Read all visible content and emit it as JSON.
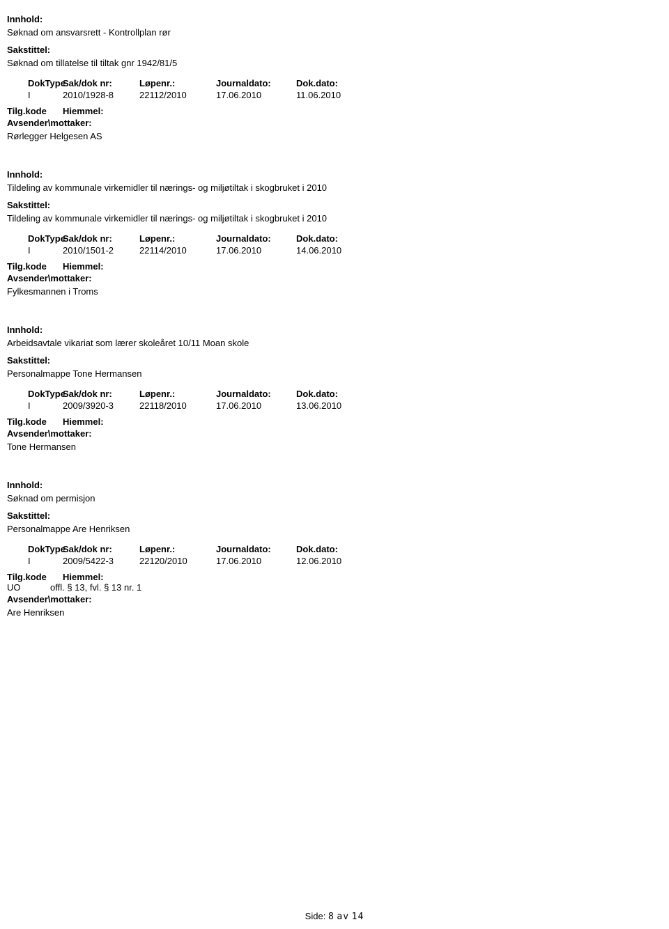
{
  "labels": {
    "innhold": "Innhold:",
    "sakstittel": "Sakstittel:",
    "doktype": "DokType",
    "saknr": "Sak/dok nr:",
    "lopenr": "Løpenr.:",
    "journaldato": "Journaldato:",
    "dokdato": "Dok.dato:",
    "tilgkode": "Tilg.kode",
    "hiemmel": "Hiemmel:",
    "avsender": "Avsender\\mottaker:"
  },
  "entries": [
    {
      "innhold": "Søknad om ansvarsrett - Kontrollplan rør",
      "sakstittel": "Søknad om tillatelse til tiltak gnr 1942/81/5",
      "doktype": "I",
      "saknr": "2010/1928-8",
      "lopenr": "22112/2010",
      "journaldato": "17.06.2010",
      "dokdato": "11.06.2010",
      "tilgkode": "",
      "hiemmel": "",
      "avsender": "Rørlegger Helgesen AS"
    },
    {
      "innhold": "Tildeling av kommunale virkemidler til nærings- og miljøtiltak i skogbruket i 2010",
      "sakstittel": "Tildeling av kommunale virkemidler til nærings- og miljøtiltak i skogbruket i 2010",
      "doktype": "I",
      "saknr": "2010/1501-2",
      "lopenr": "22114/2010",
      "journaldato": "17.06.2010",
      "dokdato": "14.06.2010",
      "tilgkode": "",
      "hiemmel": "",
      "avsender": "Fylkesmannen i Troms"
    },
    {
      "innhold": "Arbeidsavtale vikariat som lærer skoleåret 10/11 Moan skole",
      "sakstittel": "Personalmappe Tone Hermansen",
      "doktype": "I",
      "saknr": "2009/3920-3",
      "lopenr": "22118/2010",
      "journaldato": "17.06.2010",
      "dokdato": "13.06.2010",
      "tilgkode": "",
      "hiemmel": "",
      "avsender": "Tone Hermansen"
    },
    {
      "innhold": "Søknad om permisjon",
      "sakstittel": "Personalmappe Are Henriksen",
      "doktype": "I",
      "saknr": "2009/5422-3",
      "lopenr": "22120/2010",
      "journaldato": "17.06.2010",
      "dokdato": "12.06.2010",
      "tilgkode": "UO",
      "hiemmel": "offl. § 13, fvl. § 13 nr. 1",
      "avsender": "Are Henriksen"
    }
  ],
  "footer": {
    "prefix": "Side:",
    "current": "8",
    "separator": "av",
    "total": "14"
  }
}
